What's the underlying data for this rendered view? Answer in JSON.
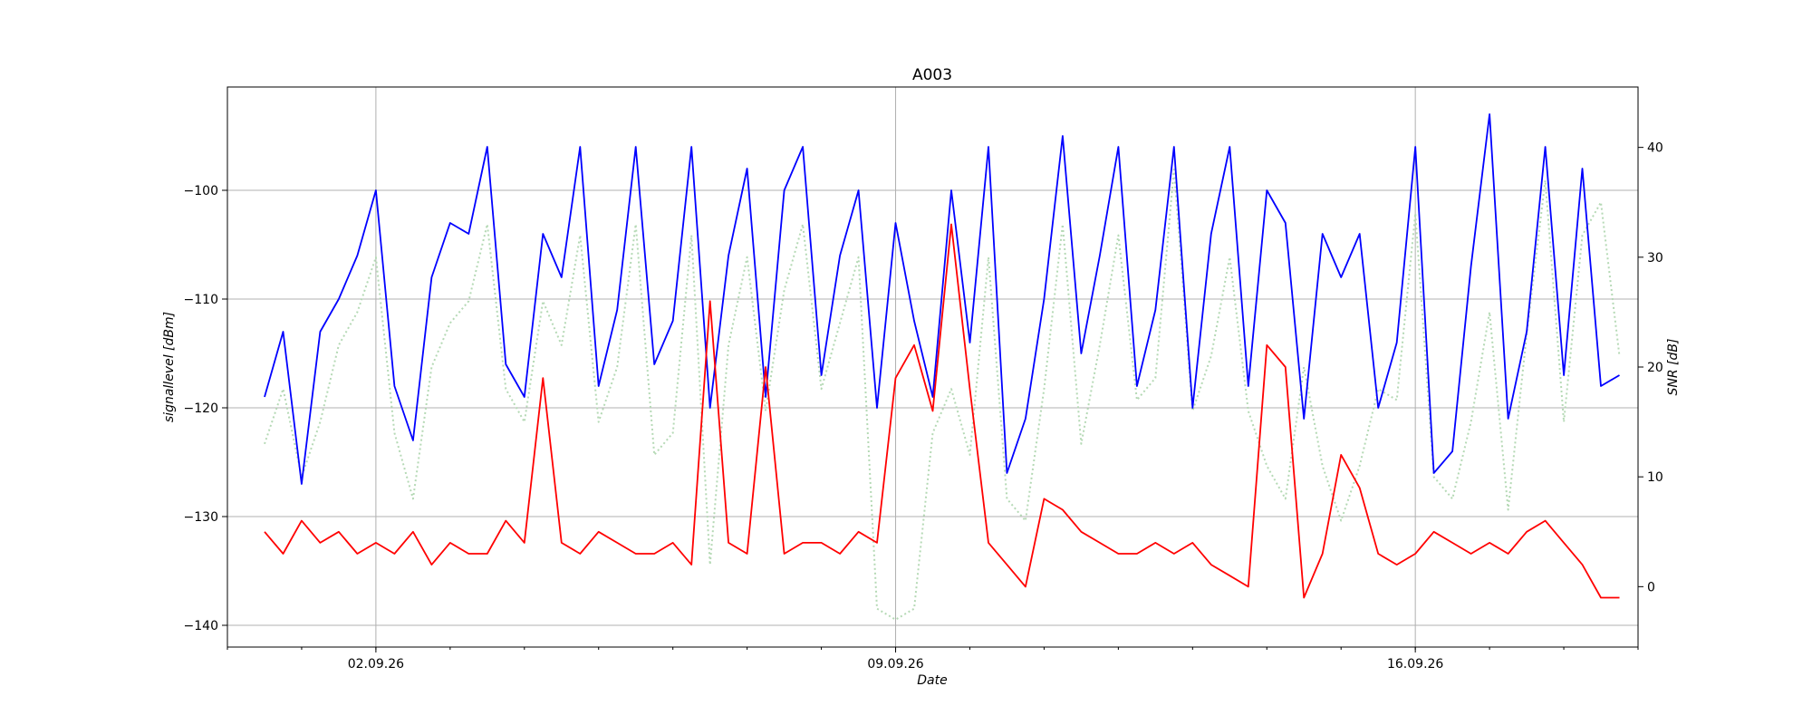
{
  "chart_data": {
    "type": "line",
    "title": "A003",
    "xlabel": "Date",
    "ylabel_left": "signallevel [dBm]",
    "ylabel_right": "SNR [dB]",
    "xlim": [
      "2026-08-31",
      "2026-09-19"
    ],
    "ylim_left": [
      -142,
      -90.5
    ],
    "ylim_right": [
      -5.5,
      45.5
    ],
    "x_ticks": [
      {
        "date": "2026-09-02",
        "label": "02.09.26"
      },
      {
        "date": "2026-09-09",
        "label": "09.09.26"
      },
      {
        "date": "2026-09-16",
        "label": "16.09.26"
      }
    ],
    "y_ticks_left": [
      -140,
      -130,
      -120,
      -110,
      -100
    ],
    "y_ticks_right": [
      0,
      10,
      20,
      30,
      40
    ],
    "grid": true,
    "series": [
      {
        "axis": "left",
        "color": "#0000ff",
        "style": "solid",
        "time": [
          "2026-08-31T12:00",
          "2026-08-31T18:00",
          "2026-09-01T00:00",
          "2026-09-01T06:00",
          "2026-09-01T12:00",
          "2026-09-01T18:00",
          "2026-09-02T00:00",
          "2026-09-02T06:00",
          "2026-09-02T12:00",
          "2026-09-02T18:00",
          "2026-09-03T00:00",
          "2026-09-03T06:00",
          "2026-09-03T12:00",
          "2026-09-03T18:00",
          "2026-09-04T00:00",
          "2026-09-04T06:00",
          "2026-09-04T12:00",
          "2026-09-04T18:00",
          "2026-09-05T00:00",
          "2026-09-05T06:00",
          "2026-09-05T12:00",
          "2026-09-05T18:00",
          "2026-09-06T00:00",
          "2026-09-06T06:00",
          "2026-09-06T12:00",
          "2026-09-06T18:00",
          "2026-09-07T00:00",
          "2026-09-07T06:00",
          "2026-09-07T12:00",
          "2026-09-07T18:00",
          "2026-09-08T00:00",
          "2026-09-08T06:00",
          "2026-09-08T12:00",
          "2026-09-08T18:00",
          "2026-09-09T00:00",
          "2026-09-09T06:00",
          "2026-09-09T12:00",
          "2026-09-09T18:00",
          "2026-09-10T00:00",
          "2026-09-10T06:00",
          "2026-09-10T12:00",
          "2026-09-10T18:00",
          "2026-09-11T00:00",
          "2026-09-11T06:00",
          "2026-09-11T12:00",
          "2026-09-11T18:00",
          "2026-09-12T00:00",
          "2026-09-12T06:00",
          "2026-09-12T12:00",
          "2026-09-12T18:00",
          "2026-09-13T00:00",
          "2026-09-13T06:00",
          "2026-09-13T12:00",
          "2026-09-13T18:00",
          "2026-09-14T00:00",
          "2026-09-14T06:00",
          "2026-09-14T12:00",
          "2026-09-14T18:00",
          "2026-09-15T00:00",
          "2026-09-15T06:00",
          "2026-09-15T12:00",
          "2026-09-15T18:00",
          "2026-09-16T00:00",
          "2026-09-16T06:00",
          "2026-09-16T12:00",
          "2026-09-16T18:00",
          "2026-09-17T00:00",
          "2026-09-17T06:00",
          "2026-09-17T12:00",
          "2026-09-17T18:00",
          "2026-09-18T00:00",
          "2026-09-18T06:00",
          "2026-09-18T12:00",
          "2026-09-18T18:00"
        ],
        "values": [
          -119,
          -113,
          -127,
          -113,
          -110,
          -106,
          -100,
          -118,
          -123,
          -108,
          -103,
          -104,
          -96,
          -116,
          -119,
          -104,
          -108,
          -96,
          -118,
          -111,
          -96,
          -116,
          -112,
          -96,
          -120,
          -106,
          -98,
          -119,
          -100,
          -96,
          -117,
          -106,
          -100,
          -120,
          -103,
          -112,
          -119,
          -100,
          -114,
          -96,
          -126,
          -121,
          -110,
          -95,
          -115,
          -106,
          -96,
          -118,
          -111,
          -96,
          -120,
          -104,
          -96,
          -118,
          -100,
          -103,
          -121,
          -104,
          -108,
          -104,
          -120,
          -114,
          -96,
          -126,
          -124,
          -107,
          -93,
          -121,
          -113,
          -96,
          -117,
          -98,
          -118,
          -117
        ]
      },
      {
        "axis": "right",
        "color": "#ff0000",
        "style": "solid",
        "time": [
          "2026-08-31T12:00",
          "2026-08-31T18:00",
          "2026-09-01T00:00",
          "2026-09-01T06:00",
          "2026-09-01T12:00",
          "2026-09-01T18:00",
          "2026-09-02T00:00",
          "2026-09-02T06:00",
          "2026-09-02T12:00",
          "2026-09-02T18:00",
          "2026-09-03T00:00",
          "2026-09-03T06:00",
          "2026-09-03T12:00",
          "2026-09-03T18:00",
          "2026-09-04T00:00",
          "2026-09-04T06:00",
          "2026-09-04T12:00",
          "2026-09-04T18:00",
          "2026-09-05T00:00",
          "2026-09-05T06:00",
          "2026-09-05T12:00",
          "2026-09-05T18:00",
          "2026-09-06T00:00",
          "2026-09-06T06:00",
          "2026-09-06T12:00",
          "2026-09-06T18:00",
          "2026-09-07T00:00",
          "2026-09-07T06:00",
          "2026-09-07T12:00",
          "2026-09-07T18:00",
          "2026-09-08T00:00",
          "2026-09-08T06:00",
          "2026-09-08T12:00",
          "2026-09-08T18:00",
          "2026-09-09T00:00",
          "2026-09-09T06:00",
          "2026-09-09T12:00",
          "2026-09-09T18:00",
          "2026-09-10T00:00",
          "2026-09-10T06:00",
          "2026-09-10T12:00",
          "2026-09-10T18:00",
          "2026-09-11T00:00",
          "2026-09-11T06:00",
          "2026-09-11T12:00",
          "2026-09-11T18:00",
          "2026-09-12T00:00",
          "2026-09-12T06:00",
          "2026-09-12T12:00",
          "2026-09-12T18:00",
          "2026-09-13T00:00",
          "2026-09-13T06:00",
          "2026-09-13T12:00",
          "2026-09-13T18:00",
          "2026-09-14T00:00",
          "2026-09-14T06:00",
          "2026-09-14T12:00",
          "2026-09-14T18:00",
          "2026-09-15T00:00",
          "2026-09-15T06:00",
          "2026-09-15T12:00",
          "2026-09-15T18:00",
          "2026-09-16T00:00",
          "2026-09-16T06:00",
          "2026-09-16T12:00",
          "2026-09-16T18:00",
          "2026-09-17T00:00",
          "2026-09-17T06:00",
          "2026-09-17T12:00",
          "2026-09-17T18:00",
          "2026-09-18T00:00",
          "2026-09-18T06:00",
          "2026-09-18T12:00",
          "2026-09-18T18:00"
        ],
        "values": [
          5,
          3,
          6,
          4,
          5,
          3,
          4,
          3,
          5,
          2,
          4,
          3,
          3,
          6,
          4,
          19,
          4,
          3,
          5,
          4,
          3,
          3,
          4,
          2,
          26,
          4,
          3,
          20,
          3,
          4,
          4,
          3,
          5,
          4,
          19,
          22,
          16,
          33,
          18,
          4,
          2,
          0,
          8,
          7,
          5,
          4,
          3,
          3,
          4,
          3,
          4,
          2,
          1,
          0,
          22,
          20,
          -1,
          3,
          12,
          9,
          3,
          2,
          3,
          5,
          4,
          3,
          4,
          3,
          5,
          6,
          4,
          2,
          -1,
          -1
        ]
      },
      {
        "axis": "right",
        "color": "#b5d9b5",
        "style": "dotted",
        "time": [
          "2026-08-31T12:00",
          "2026-08-31T18:00",
          "2026-09-01T00:00",
          "2026-09-01T06:00",
          "2026-09-01T12:00",
          "2026-09-01T18:00",
          "2026-09-02T00:00",
          "2026-09-02T06:00",
          "2026-09-02T12:00",
          "2026-09-02T18:00",
          "2026-09-03T00:00",
          "2026-09-03T06:00",
          "2026-09-03T12:00",
          "2026-09-03T18:00",
          "2026-09-04T00:00",
          "2026-09-04T06:00",
          "2026-09-04T12:00",
          "2026-09-04T18:00",
          "2026-09-05T00:00",
          "2026-09-05T06:00",
          "2026-09-05T12:00",
          "2026-09-05T18:00",
          "2026-09-06T00:00",
          "2026-09-06T06:00",
          "2026-09-06T12:00",
          "2026-09-06T18:00",
          "2026-09-07T00:00",
          "2026-09-07T06:00",
          "2026-09-07T12:00",
          "2026-09-07T18:00",
          "2026-09-08T00:00",
          "2026-09-08T06:00",
          "2026-09-08T12:00",
          "2026-09-08T18:00",
          "2026-09-09T00:00",
          "2026-09-09T06:00",
          "2026-09-09T12:00",
          "2026-09-09T18:00",
          "2026-09-10T00:00",
          "2026-09-10T06:00",
          "2026-09-10T12:00",
          "2026-09-10T18:00",
          "2026-09-11T00:00",
          "2026-09-11T06:00",
          "2026-09-11T12:00",
          "2026-09-11T18:00",
          "2026-09-12T00:00",
          "2026-09-12T06:00",
          "2026-09-12T12:00",
          "2026-09-12T18:00",
          "2026-09-13T00:00",
          "2026-09-13T06:00",
          "2026-09-13T12:00",
          "2026-09-13T18:00",
          "2026-09-14T00:00",
          "2026-09-14T06:00",
          "2026-09-14T12:00",
          "2026-09-14T18:00",
          "2026-09-15T00:00",
          "2026-09-15T06:00",
          "2026-09-15T12:00",
          "2026-09-15T18:00",
          "2026-09-16T00:00",
          "2026-09-16T06:00",
          "2026-09-16T12:00",
          "2026-09-16T18:00",
          "2026-09-17T00:00",
          "2026-09-17T06:00",
          "2026-09-17T12:00",
          "2026-09-17T18:00",
          "2026-09-18T00:00",
          "2026-09-18T06:00",
          "2026-09-18T12:00",
          "2026-09-18T18:00"
        ],
        "values": [
          13,
          18,
          10,
          15,
          22,
          25,
          30,
          14,
          8,
          20,
          24,
          26,
          33,
          18,
          15,
          26,
          22,
          32,
          15,
          20,
          33,
          12,
          14,
          32,
          2,
          22,
          30,
          16,
          27,
          33,
          18,
          24,
          30,
          -2,
          -3,
          -2,
          14,
          18,
          12,
          30,
          8,
          6,
          18,
          33,
          13,
          22,
          32,
          17,
          19,
          38,
          16,
          21,
          30,
          16,
          11,
          8,
          20,
          11,
          6,
          11,
          18,
          17,
          34,
          10,
          8,
          15,
          25,
          7,
          23,
          37,
          15,
          32,
          35,
          21
        ]
      }
    ]
  }
}
